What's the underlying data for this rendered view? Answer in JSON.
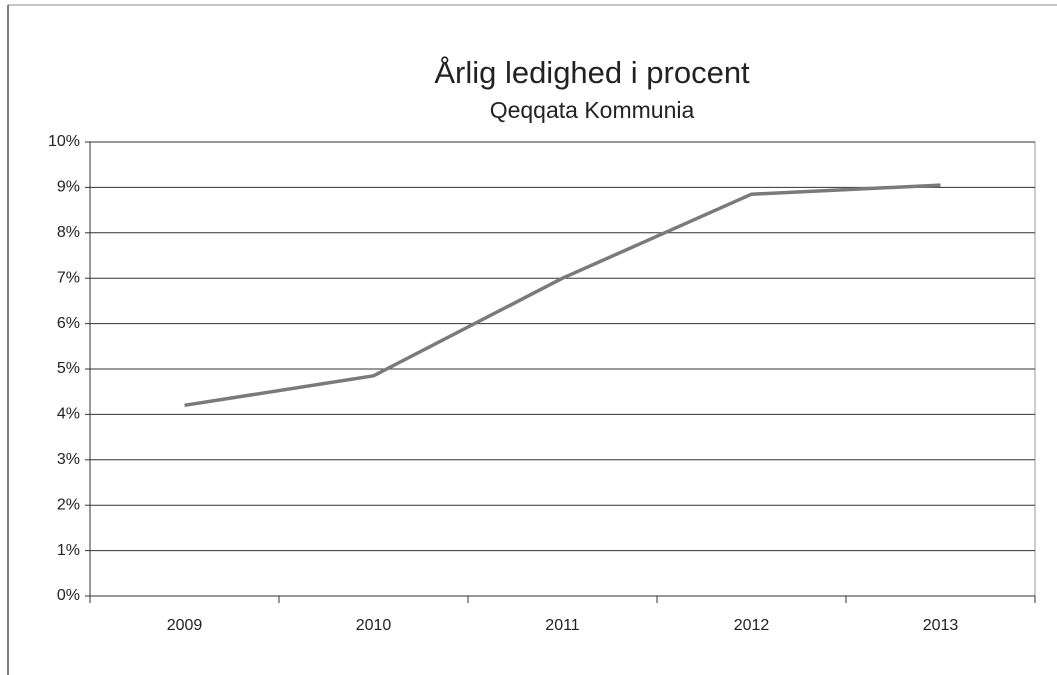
{
  "chart_data": {
    "type": "line",
    "title": "Årlig ledighed i procent",
    "subtitle": "Qeqqata Kommunia",
    "categories": [
      "2009",
      "2010",
      "2011",
      "2012",
      "2013"
    ],
    "values": [
      4.2,
      4.85,
      7.0,
      8.85,
      9.05
    ],
    "color": "#7a7a7a",
    "ylim": [
      0,
      10
    ],
    "yticks": [
      {
        "value": 0,
        "label": "0%"
      },
      {
        "value": 1,
        "label": "1%"
      },
      {
        "value": 2,
        "label": "2%"
      },
      {
        "value": 3,
        "label": "3%"
      },
      {
        "value": 4,
        "label": "4%"
      },
      {
        "value": 5,
        "label": "5%"
      },
      {
        "value": 6,
        "label": "6%"
      },
      {
        "value": 7,
        "label": "7%"
      },
      {
        "value": 8,
        "label": "8%"
      },
      {
        "value": 9,
        "label": "9%"
      },
      {
        "value": 10,
        "label": "10%"
      }
    ],
    "grid": true
  }
}
